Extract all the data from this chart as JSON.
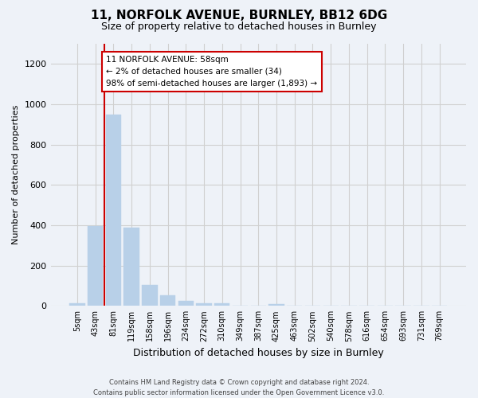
{
  "title_line1": "11, NORFOLK AVENUE, BURNLEY, BB12 6DG",
  "title_line2": "Size of property relative to detached houses in Burnley",
  "xlabel": "Distribution of detached houses by size in Burnley",
  "ylabel": "Number of detached properties",
  "categories": [
    "5sqm",
    "43sqm",
    "81sqm",
    "119sqm",
    "158sqm",
    "196sqm",
    "234sqm",
    "272sqm",
    "310sqm",
    "349sqm",
    "387sqm",
    "425sqm",
    "463sqm",
    "502sqm",
    "540sqm",
    "578sqm",
    "616sqm",
    "654sqm",
    "693sqm",
    "731sqm",
    "769sqm"
  ],
  "values": [
    12,
    395,
    950,
    390,
    105,
    52,
    25,
    15,
    12,
    0,
    0,
    10,
    0,
    0,
    0,
    0,
    0,
    0,
    0,
    0,
    0
  ],
  "bar_color": "#b8d0e8",
  "bar_edge_color": "#b8d0e8",
  "grid_color": "#d0d0d0",
  "background_color": "#eef2f8",
  "vline_color": "#cc0000",
  "vline_x": 1.5,
  "annotation_text": "11 NORFOLK AVENUE: 58sqm\n← 2% of detached houses are smaller (34)\n98% of semi-detached houses are larger (1,893) →",
  "annotation_box_color": "#ffffff",
  "annotation_box_edge": "#cc0000",
  "ylim": [
    0,
    1300
  ],
  "yticks": [
    0,
    200,
    400,
    600,
    800,
    1000,
    1200
  ],
  "footer_line1": "Contains HM Land Registry data © Crown copyright and database right 2024.",
  "footer_line2": "Contains public sector information licensed under the Open Government Licence v3.0."
}
